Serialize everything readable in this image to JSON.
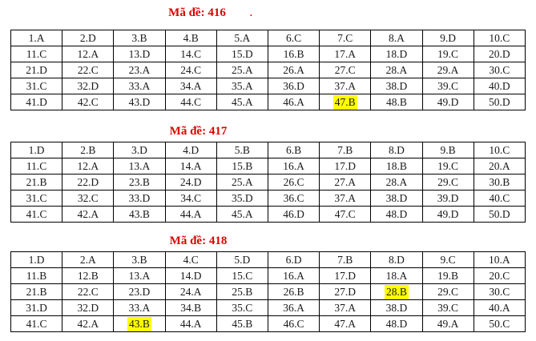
{
  "page": {
    "background": "#ffffff"
  },
  "colors": {
    "header_red": "#dd0000",
    "highlight_yellow": "#ffff00",
    "cell_text": "#1a1a1a",
    "border": "#000000"
  },
  "tables": [
    {
      "title": "Mã đề: 416",
      "stray_mark": ".",
      "highlights": [
        "47.B"
      ],
      "rows": [
        [
          "1.A",
          "2.D",
          "3.B",
          "4.B",
          "5.A",
          "6.C",
          "7.C",
          "8.A",
          "9.D",
          "10.C"
        ],
        [
          "11.C",
          "12.A",
          "13.D",
          "14.C",
          "15.D",
          "16.B",
          "17.A",
          "18.D",
          "19.C",
          "20.D"
        ],
        [
          "21.D",
          "22.C",
          "23.A",
          "24.C",
          "25.A",
          "26.A",
          "27.C",
          "28.A",
          "29.A",
          "30.C"
        ],
        [
          "31.C",
          "32.D",
          "33.A",
          "34.A",
          "35.A",
          "36.D",
          "37.A",
          "38.D",
          "39.C",
          "40.D"
        ],
        [
          "41.D",
          "42.C",
          "43.D",
          "44.C",
          "45.A",
          "46.A",
          "47.B",
          "48.B",
          "49.D",
          "50.D"
        ]
      ]
    },
    {
      "title": "Mã đề: 417",
      "stray_mark": "",
      "highlights": [],
      "rows": [
        [
          "1.D",
          "2.B",
          "3.D",
          "4.D",
          "5.B",
          "6.B",
          "7.B",
          "8.D",
          "9.B",
          "10.C"
        ],
        [
          "11.C",
          "12.A",
          "13.A",
          "14.A",
          "15.B",
          "16.A",
          "17.D",
          "18.B",
          "19.C",
          "20.A"
        ],
        [
          "21.B",
          "22.D",
          "23.B",
          "24.D",
          "25.A",
          "26.C",
          "27.A",
          "28.A",
          "29.C",
          "30.B"
        ],
        [
          "31.C",
          "32.C",
          "33.D",
          "34.C",
          "35.D",
          "36.C",
          "37.A",
          "38.D",
          "39.D",
          "40.C"
        ],
        [
          "41.C",
          "42.A",
          "43.B",
          "44.A",
          "45.A",
          "46.D",
          "47.C",
          "48.D",
          "49.D",
          "50.D"
        ]
      ]
    },
    {
      "title": "Mã đề: 418",
      "stray_mark": "",
      "highlights": [
        "28.B",
        "43.B"
      ],
      "rows": [
        [
          "1.D",
          "2.A",
          "3.B",
          "4.C",
          "5.D",
          "6.D",
          "7.B",
          "8.D",
          "9.C",
          "10.A"
        ],
        [
          "11.B",
          "12.B",
          "13.A",
          "14.D",
          "15.C",
          "16.A",
          "17.D",
          "18.A",
          "19.B",
          "20.C"
        ],
        [
          "21.B",
          "22.C",
          "23.D",
          "24.A",
          "25.B",
          "26.B",
          "27.D",
          "28.B",
          "29.C",
          "30.C"
        ],
        [
          "31.D",
          "32.D",
          "33.A",
          "34.B",
          "35.C",
          "36.A",
          "37.A",
          "38.D",
          "39.C",
          "40.A"
        ],
        [
          "41.C",
          "42.A",
          "43.B",
          "44.A",
          "45.B",
          "46.C",
          "47.A",
          "48.D",
          "49.A",
          "50.C"
        ]
      ]
    }
  ]
}
